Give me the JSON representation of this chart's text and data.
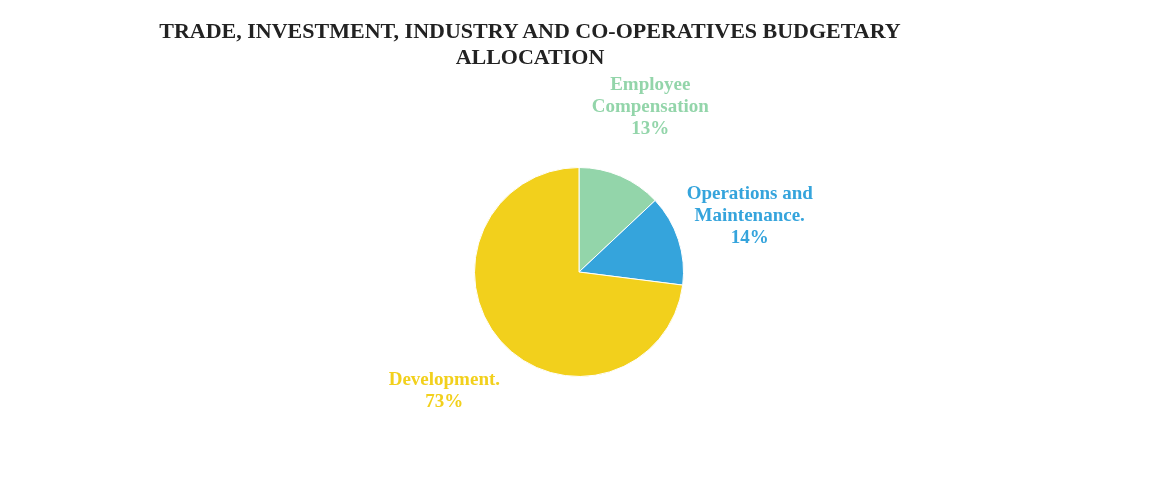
{
  "chart_data": {
    "type": "pie",
    "title": "TRADE, INVESTMENT, INDUSTRY AND CO-OPERATIVES BUDGETARY ALLOCATION",
    "categories": [
      "Employee Compensation",
      "Operations and Maintenance.",
      "Development."
    ],
    "values": [
      13,
      14,
      73
    ],
    "colors": [
      "#93d5aa",
      "#35a4dc",
      "#f2d01c"
    ],
    "value_labels": [
      "13%",
      "14%",
      "73%"
    ],
    "legend": false
  }
}
